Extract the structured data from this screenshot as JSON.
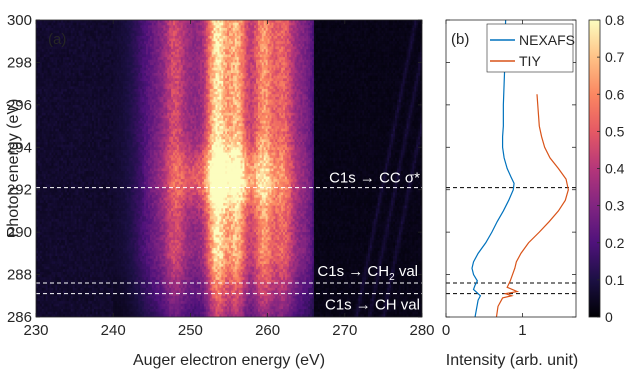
{
  "colors": {
    "axis": "#262626",
    "nexafs": "#0072BD",
    "tiy": "#D95319",
    "dashed": "#000000",
    "annot": "#ffffff"
  },
  "chart_data": [
    {
      "type": "heatmap",
      "panel_label": "(a)",
      "xlabel": "Auger electron energy (eV)",
      "ylabel": "Photon energy (eV)",
      "xlim": [
        230,
        280
      ],
      "ylim": [
        286,
        300
      ],
      "xticks": [
        230,
        240,
        250,
        260,
        270,
        280
      ],
      "yticks": [
        286,
        288,
        290,
        292,
        294,
        296,
        298,
        300
      ],
      "colormap": "magma",
      "intensity_bands": [
        {
          "x": 248,
          "peak": 0.45
        },
        {
          "x": 253.5,
          "peak": 0.75
        },
        {
          "x": 256,
          "peak": 0.65
        },
        {
          "x": 259.5,
          "peak": 0.6
        },
        {
          "x": 262,
          "peak": 0.5
        }
      ],
      "high_energy_cutoff": 266,
      "resonance_max_photon_energy": 292.6,
      "annotations": [
        {
          "text": "C1s → CC σ*",
          "y": 292.1
        },
        {
          "text": "C1s → CH",
          "sub": "2",
          "tail": " val",
          "y": 287.6
        },
        {
          "text": "C1s → CH val",
          "y": 287.1
        }
      ]
    },
    {
      "type": "line",
      "panel_label": "(b)",
      "xlabel": "Intensity (arb. unit)",
      "xlim": [
        0,
        1.7
      ],
      "xticks": [
        0,
        1
      ],
      "ylim": [
        286,
        300
      ],
      "legend_position": "top-left",
      "series": [
        {
          "name": "NEXAFS",
          "y": [
            286.0,
            286.4,
            286.8,
            287.0,
            287.1,
            287.3,
            287.5,
            287.7,
            288.0,
            288.3,
            288.6,
            289.0,
            289.5,
            290.0,
            290.5,
            291.0,
            291.5,
            292.0,
            292.3,
            292.6,
            293.0,
            293.5,
            294.0,
            294.5,
            295.0,
            296.0,
            297.0,
            298.0,
            299.0,
            300.0
          ],
          "values": [
            0.38,
            0.4,
            0.42,
            0.45,
            0.42,
            0.36,
            0.38,
            0.41,
            0.36,
            0.34,
            0.36,
            0.42,
            0.52,
            0.6,
            0.67,
            0.75,
            0.82,
            0.88,
            0.89,
            0.85,
            0.8,
            0.76,
            0.74,
            0.74,
            0.75,
            0.75,
            0.76,
            0.77,
            0.77,
            0.78
          ]
        },
        {
          "name": "TIY",
          "y": [
            286.0,
            286.5,
            286.9,
            287.0,
            287.1,
            287.2,
            287.4,
            287.7,
            288.0,
            288.3,
            288.6,
            289.0,
            289.5,
            290.0,
            290.5,
            291.0,
            291.5,
            292.0,
            292.5,
            293.0,
            293.5,
            294.0,
            294.5,
            295.0,
            295.5,
            296.0,
            296.5
          ],
          "values": [
            0.66,
            0.68,
            0.74,
            0.86,
            0.78,
            0.93,
            0.8,
            0.84,
            0.87,
            0.9,
            0.92,
            0.98,
            1.08,
            1.22,
            1.35,
            1.47,
            1.56,
            1.6,
            1.57,
            1.47,
            1.36,
            1.29,
            1.25,
            1.22,
            1.21,
            1.2,
            1.19
          ]
        }
      ],
      "reference_lines_y": [
        292.1,
        287.6,
        287.1
      ]
    },
    {
      "type": "colorbar",
      "colormap": "magma",
      "range": [
        0,
        0.8
      ],
      "ticks": [
        0,
        0.1,
        0.2,
        0.3,
        0.4,
        0.5,
        0.6,
        0.7,
        0.8
      ]
    }
  ]
}
